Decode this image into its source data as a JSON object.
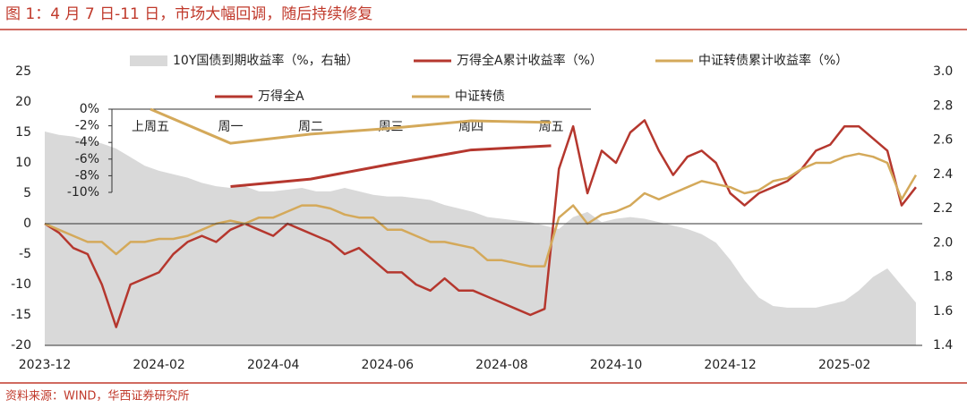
{
  "chart_data": [
    {
      "type": "line",
      "title": "图 1：4 月 7 日-11 日，市场大幅回调，随后持续修复",
      "source": "资料来源：WIND，华西证券研究所",
      "categories": [
        "2023-12",
        null,
        null,
        null,
        null,
        null,
        null,
        null,
        "2024-02",
        null,
        null,
        null,
        null,
        null,
        null,
        null,
        "2024-04",
        null,
        null,
        null,
        null,
        null,
        null,
        null,
        "2024-06",
        null,
        null,
        null,
        null,
        null,
        null,
        null,
        "2024-08",
        null,
        null,
        null,
        null,
        null,
        null,
        null,
        "2024-10",
        null,
        null,
        null,
        null,
        null,
        null,
        null,
        "2024-12",
        null,
        null,
        null,
        null,
        null,
        null,
        null,
        "2025-02",
        null,
        null,
        null,
        null,
        null
      ],
      "series": [
        {
          "name": "10Y国债到期收益率（%，右轴）",
          "kind": "area",
          "color": "#d9d9d9",
          "axis": "y2",
          "values": [
            2.65,
            2.63,
            2.62,
            2.6,
            2.58,
            2.55,
            2.5,
            2.45,
            2.42,
            2.4,
            2.38,
            2.35,
            2.33,
            2.32,
            2.33,
            2.3,
            2.3,
            2.31,
            2.32,
            2.3,
            2.3,
            2.32,
            2.3,
            2.28,
            2.27,
            2.27,
            2.26,
            2.25,
            2.22,
            2.2,
            2.18,
            2.15,
            2.14,
            2.13,
            2.12,
            2.1,
            2.08,
            2.15,
            2.18,
            2.12,
            2.14,
            2.15,
            2.14,
            2.12,
            2.1,
            2.08,
            2.05,
            2.0,
            1.9,
            1.78,
            1.68,
            1.63,
            1.62,
            1.62,
            1.62,
            1.64,
            1.66,
            1.72,
            1.8,
            1.85,
            1.75,
            1.65
          ]
        },
        {
          "name": "万得全A累计收益率（%）",
          "kind": "line",
          "color": "#b5372e",
          "values": [
            0,
            -1.5,
            -4,
            -5,
            -10,
            -17,
            -10,
            -9,
            -8,
            -5,
            -3,
            -2,
            -3,
            -1,
            0,
            -1,
            -2,
            0,
            -1,
            -2,
            -3,
            -5,
            -4,
            -6,
            -8,
            -8,
            -10,
            -11,
            -9,
            -11,
            -11,
            -12,
            -13,
            -14,
            -15,
            -14,
            9,
            16,
            5,
            12,
            10,
            15,
            17,
            12,
            8,
            11,
            12,
            10,
            5,
            3,
            5,
            6,
            7,
            9,
            12,
            13,
            16,
            16,
            14,
            12,
            3,
            6
          ]
        },
        {
          "name": "中证转债累计收益率（%）",
          "kind": "line",
          "color": "#d4a95a",
          "values": [
            0,
            -1,
            -2,
            -3,
            -3,
            -5,
            -3,
            -3,
            -2.5,
            -2.5,
            -2,
            -1,
            0,
            0.5,
            0,
            1,
            1,
            2,
            3,
            3,
            2.5,
            1.5,
            1,
            1,
            -1,
            -1,
            -2,
            -3,
            -3,
            -3.5,
            -4,
            -6,
            -6,
            -6.5,
            -7,
            -7,
            1,
            3,
            0,
            1.5,
            2,
            3,
            5,
            4,
            5,
            6,
            7,
            6.5,
            6,
            5,
            5.5,
            7,
            7.5,
            9,
            10,
            10,
            11,
            11.5,
            11,
            10,
            4,
            8
          ]
        }
      ],
      "ylim": [
        -20,
        25
      ],
      "yticks": [
        25,
        20,
        15,
        10,
        5,
        0,
        -5,
        -10,
        -15,
        -20
      ],
      "y2lim": [
        1.4,
        3.0
      ],
      "y2ticks": [
        {
          "value": 3.0,
          "label": "3.0"
        },
        2.8,
        2.6,
        2.4,
        2.2,
        {
          "value": 2.0,
          "label": "2.0"
        },
        1.8,
        1.6,
        1.4
      ]
    },
    {
      "type": "line",
      "categories": [
        "上周五",
        "周一",
        "周二",
        "周三",
        "周四",
        "周五"
      ],
      "series": [
        {
          "name": "万得全A",
          "color": "#b5372e",
          "values": [
            null,
            -9.3,
            -8.4,
            -6.6,
            -4.9,
            -4.4
          ]
        },
        {
          "name": "中证转债",
          "color": "#d4a95a",
          "values": [
            0,
            -4.1,
            -3.0,
            -2.3,
            -1.4,
            -1.6
          ]
        }
      ],
      "ylim": [
        -10,
        0
      ],
      "yticks": [
        {
          "value": 0,
          "label": "0%"
        },
        {
          "value": -2,
          "label": "-2%"
        },
        {
          "value": -4,
          "label": "-4%"
        },
        {
          "value": -6,
          "label": "-6%"
        },
        {
          "value": -8,
          "label": "-8%"
        },
        {
          "value": -10,
          "label": "-10%"
        }
      ]
    }
  ]
}
